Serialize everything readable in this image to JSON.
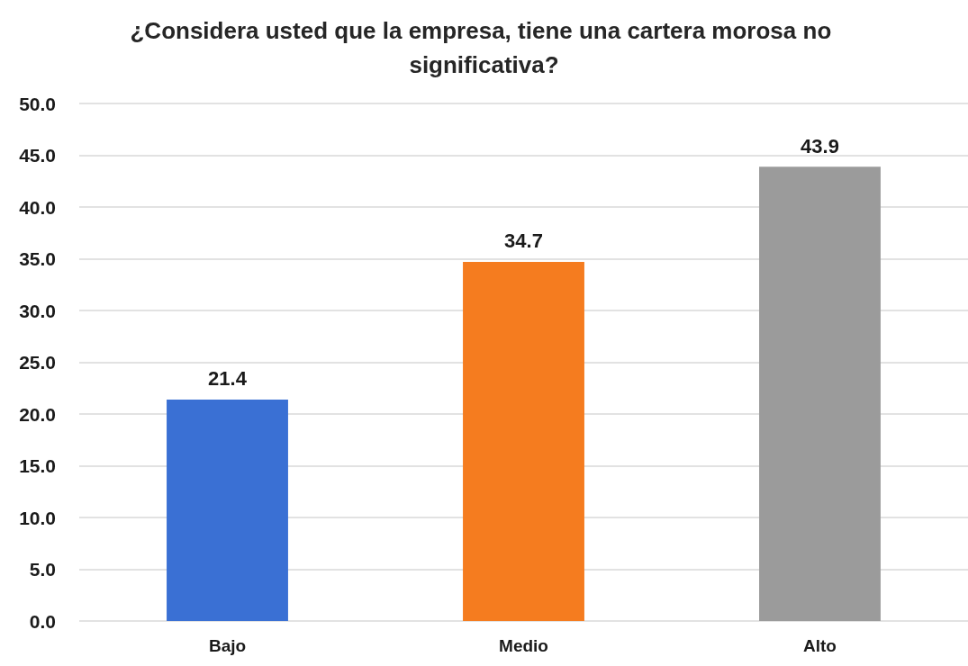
{
  "chart_data": {
    "type": "bar",
    "title": "¿Considera usted que la empresa, tiene una cartera morosa no significativa?",
    "categories": [
      "Bajo",
      "Medio",
      "Alto"
    ],
    "values": [
      21.4,
      34.7,
      43.9
    ],
    "colors": [
      "#3a70d4",
      "#f57c1f",
      "#9b9b9b"
    ],
    "ylim": [
      0,
      50
    ],
    "yticks": [
      {
        "value": 0,
        "label": "0.0"
      },
      {
        "value": 5,
        "label": "5.0"
      },
      {
        "value": 10,
        "label": "10.0"
      },
      {
        "value": 15,
        "label": "15.0"
      },
      {
        "value": 20,
        "label": "20.0"
      },
      {
        "value": 25,
        "label": "25.0"
      },
      {
        "value": 30,
        "label": "30.0"
      },
      {
        "value": 35,
        "label": "35.0"
      },
      {
        "value": 40,
        "label": "40.0"
      },
      {
        "value": 45,
        "label": "45.0"
      },
      {
        "value": 50,
        "label": "50.0"
      }
    ],
    "grid": "y",
    "data_labels": true
  }
}
